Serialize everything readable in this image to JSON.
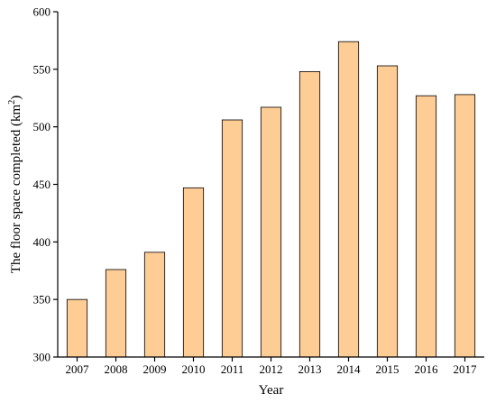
{
  "chart_data": {
    "type": "bar",
    "title": "",
    "xlabel": "Year",
    "ylabel": "The floor space completed (km",
    "ylabel_superscript": "2",
    "ylabel_suffix": ")",
    "categories": [
      "2007",
      "2008",
      "2009",
      "2010",
      "2011",
      "2012",
      "2013",
      "2014",
      "2015",
      "2016",
      "2017"
    ],
    "values": [
      350,
      376,
      391,
      447,
      506,
      517,
      548,
      574,
      553,
      527,
      528
    ],
    "ylim": [
      300,
      600
    ],
    "yticks": [
      300,
      350,
      400,
      450,
      500,
      550,
      600
    ],
    "grid": false,
    "legend": "none",
    "bar_color": "#fecc95"
  }
}
